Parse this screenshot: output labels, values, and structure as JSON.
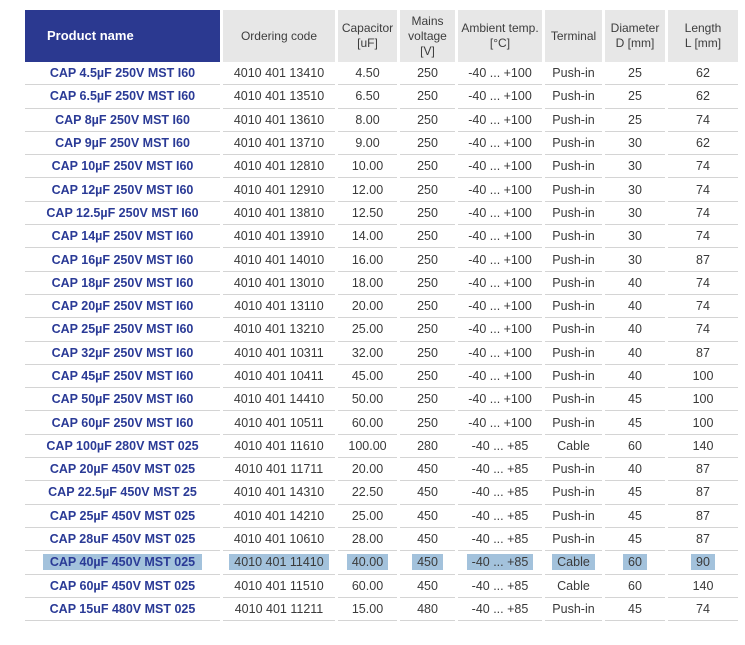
{
  "colors": {
    "header_product_bg": "#2b3990",
    "header_cell_bg": "#e7e7e7",
    "product_text": "#2a3a96",
    "body_text": "#3a3a3a",
    "row_separator": "#d4d4d4",
    "selection_highlight": "#a3c2dc"
  },
  "table": {
    "columns": [
      {
        "id": "product-name",
        "label": "Product name"
      },
      {
        "id": "ordering-code",
        "label": "Ordering code"
      },
      {
        "id": "capacitor",
        "label": "Capacitor\n[uF]"
      },
      {
        "id": "mains-voltage",
        "label": "Mains\nvoltage\n[V]"
      },
      {
        "id": "ambient-temp",
        "label": "Ambient temp.\n[°C]"
      },
      {
        "id": "terminal",
        "label": "Terminal"
      },
      {
        "id": "diameter",
        "label": "Diameter\nD [mm]"
      },
      {
        "id": "length",
        "label": "Length\nL [mm]"
      }
    ],
    "rows": [
      {
        "selected": false,
        "cells": [
          "CAP 4.5µF 250V MST I60",
          "4010 401 13410",
          "4.50",
          "250",
          "-40 ... +100",
          "Push-in",
          "25",
          "62"
        ]
      },
      {
        "selected": false,
        "cells": [
          "CAP 6.5µF 250V MST I60",
          "4010 401 13510",
          "6.50",
          "250",
          "-40 ... +100",
          "Push-in",
          "25",
          "62"
        ]
      },
      {
        "selected": false,
        "cells": [
          "CAP 8µF 250V MST I60",
          "4010 401 13610",
          "8.00",
          "250",
          "-40 ... +100",
          "Push-in",
          "25",
          "74"
        ]
      },
      {
        "selected": false,
        "cells": [
          "CAP 9µF 250V MST I60",
          "4010 401 13710",
          "9.00",
          "250",
          "-40 ... +100",
          "Push-in",
          "30",
          "62"
        ]
      },
      {
        "selected": false,
        "cells": [
          "CAP 10µF 250V MST I60",
          "4010 401 12810",
          "10.00",
          "250",
          "-40 ... +100",
          "Push-in",
          "30",
          "74"
        ]
      },
      {
        "selected": false,
        "cells": [
          "CAP 12µF 250V MST I60",
          "4010 401 12910",
          "12.00",
          "250",
          "-40 ... +100",
          "Push-in",
          "30",
          "74"
        ]
      },
      {
        "selected": false,
        "cells": [
          "CAP 12.5µF 250V MST I60",
          "4010 401 13810",
          "12.50",
          "250",
          "-40 ... +100",
          "Push-in",
          "30",
          "74"
        ]
      },
      {
        "selected": false,
        "cells": [
          "CAP 14µF 250V MST I60",
          "4010 401 13910",
          "14.00",
          "250",
          "-40 ... +100",
          "Push-in",
          "30",
          "74"
        ]
      },
      {
        "selected": false,
        "cells": [
          "CAP 16µF 250V MST I60",
          "4010 401 14010",
          "16.00",
          "250",
          "-40 ... +100",
          "Push-in",
          "30",
          "87"
        ]
      },
      {
        "selected": false,
        "cells": [
          "CAP 18µF 250V MST I60",
          "4010 401 13010",
          "18.00",
          "250",
          "-40 ... +100",
          "Push-in",
          "40",
          "74"
        ]
      },
      {
        "selected": false,
        "cells": [
          "CAP 20µF 250V MST I60",
          "4010 401 13110",
          "20.00",
          "250",
          "-40 ... +100",
          "Push-in",
          "40",
          "74"
        ]
      },
      {
        "selected": false,
        "cells": [
          "CAP 25µF 250V MST I60",
          "4010 401 13210",
          "25.00",
          "250",
          "-40 ... +100",
          "Push-in",
          "40",
          "74"
        ]
      },
      {
        "selected": false,
        "cells": [
          "CAP 32µF 250V MST I60",
          "4010 401 10311",
          "32.00",
          "250",
          "-40 ... +100",
          "Push-in",
          "40",
          "87"
        ]
      },
      {
        "selected": false,
        "cells": [
          "CAP 45µF 250V MST I60",
          "4010 401 10411",
          "45.00",
          "250",
          "-40 ... +100",
          "Push-in",
          "40",
          "100"
        ]
      },
      {
        "selected": false,
        "cells": [
          "CAP 50µF 250V MST I60",
          "4010 401 14410",
          "50.00",
          "250",
          "-40 ... +100",
          "Push-in",
          "45",
          "100"
        ]
      },
      {
        "selected": false,
        "cells": [
          "CAP 60µF 250V MST I60",
          "4010 401 10511",
          "60.00",
          "250",
          "-40 ... +100",
          "Push-in",
          "45",
          "100"
        ]
      },
      {
        "selected": false,
        "cells": [
          "CAP 100µF 280V MST 025",
          "4010 401 11610",
          "100.00",
          "280",
          "-40 ... +85",
          "Cable",
          "60",
          "140"
        ]
      },
      {
        "selected": false,
        "cells": [
          "CAP 20µF 450V MST 025",
          "4010 401 11711",
          "20.00",
          "450",
          "-40 ... +85",
          "Push-in",
          "40",
          "87"
        ]
      },
      {
        "selected": false,
        "cells": [
          "CAP 22.5µF 450V MST 25",
          "4010 401 14310",
          "22.50",
          "450",
          "-40 ... +85",
          "Push-in",
          "45",
          "87"
        ]
      },
      {
        "selected": false,
        "cells": [
          "CAP 25µF 450V MST 025",
          "4010 401 14210",
          "25.00",
          "450",
          "-40 ... +85",
          "Push-in",
          "45",
          "87"
        ]
      },
      {
        "selected": false,
        "cells": [
          "CAP 28uF 450V MST 025",
          "4010 401 10610",
          "28.00",
          "450",
          "-40 ... +85",
          "Push-in",
          "45",
          "87"
        ]
      },
      {
        "selected": true,
        "cells": [
          "CAP 40µF 450V MST 025",
          "4010 401 11410",
          "40.00",
          "450",
          "-40 ... +85",
          "Cable",
          "60",
          "90"
        ]
      },
      {
        "selected": false,
        "cells": [
          "CAP 60µF 450V MST 025",
          "4010 401 11510",
          "60.00",
          "450",
          "-40 ... +85",
          "Cable",
          "60",
          "140"
        ]
      },
      {
        "selected": false,
        "cells": [
          "CAP 15uF 480V MST 025",
          "4010 401 11211",
          "15.00",
          "480",
          "-40 ... +85",
          "Push-in",
          "45",
          "74"
        ]
      }
    ]
  }
}
